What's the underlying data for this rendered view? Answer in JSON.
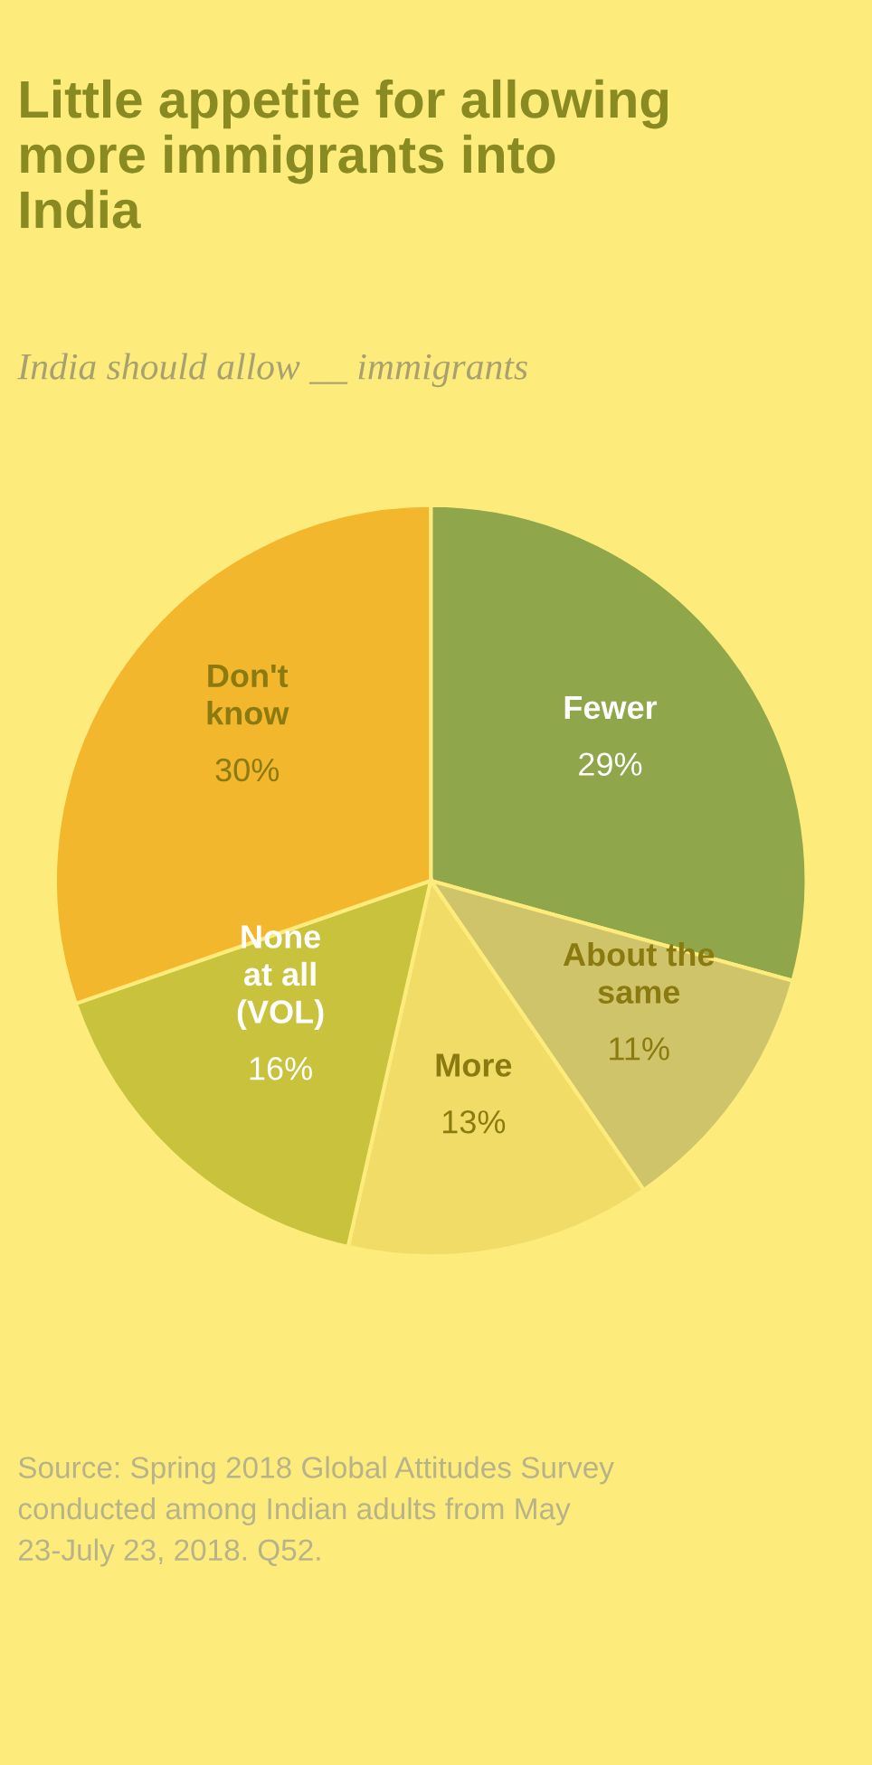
{
  "chart_data": {
    "type": "pie",
    "title": "Little appetite for allowing\nmore immigrants into\nIndia",
    "subtitle": "India should allow __ immigrants",
    "categories": [
      "Fewer",
      "About the\nsame",
      "More",
      "None\nat all\n(VOL)",
      "Don't\nknow"
    ],
    "values": [
      29,
      11,
      13,
      16,
      30
    ],
    "value_labels": [
      "29%",
      "11%",
      "13%",
      "16%",
      "30%"
    ],
    "colors": [
      "#8fa64a",
      "#cfc46a",
      "#f0dc66",
      "#c9c23c",
      "#f2b72c"
    ],
    "annotations": [
      "Source: Spring 2018 Global Attitudes Survey\nconducted among Indian adults from May\n23-July 23, 2018. Q52."
    ]
  }
}
